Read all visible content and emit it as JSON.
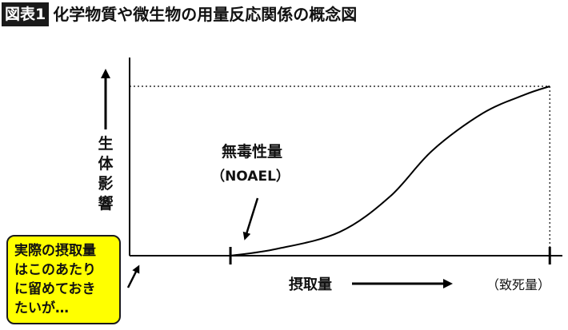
{
  "figure": {
    "badge": "図表1",
    "title": "化学物質や微生物の用量反応関係の概念図"
  },
  "chart_data": {
    "type": "line",
    "title": "化学物質や微生物の用量反応関係の概念図",
    "xlabel": "摂取量",
    "ylabel": "生体影響",
    "axis_ticks": false,
    "series": [
      {
        "values": [
          0,
          0.04,
          0.14,
          0.35,
          0.62,
          0.84,
          0.95,
          1.0
        ]
      }
    ],
    "x": [
      0.24,
      0.35,
      0.5,
      0.62,
      0.72,
      0.84,
      0.94,
      1.0
    ],
    "xlim": [
      0,
      1.03
    ],
    "ylim": [
      0,
      1.0
    ],
    "max_guide_line": "dotted",
    "annotations": {
      "noael_name": "無毒性量",
      "noael_abbr": "（NOAEL）",
      "lethal_label": "（致死量）"
    },
    "callout_lines": [
      "実際の摂取量",
      "はこのあたり",
      "に留めておき",
      "たいが…"
    ],
    "colors": {
      "line": "#000000",
      "callout_fill": "#ffff00",
      "badge": "#1a1a1a"
    }
  }
}
